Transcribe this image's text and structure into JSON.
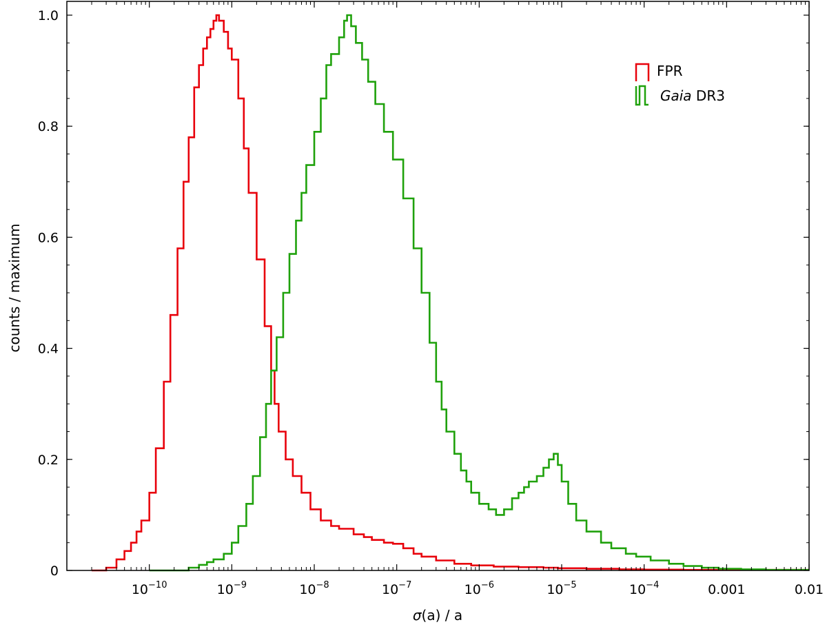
{
  "chart_data": {
    "type": "histogram",
    "xlabel_sigma": "σ",
    "xlabel_rest": "(a)  /  a",
    "ylabel": "counts  /  maximum",
    "x_scale": "log",
    "xlim": [
      1e-11,
      0.01
    ],
    "ylim": [
      0,
      1.0
    ],
    "grid": false,
    "legend": "top-right",
    "y_ticks": [
      {
        "value": 0,
        "label": "0"
      },
      {
        "value": 0.2,
        "label": "0.2"
      },
      {
        "value": 0.4,
        "label": "0.4"
      },
      {
        "value": 0.6,
        "label": "0.6"
      },
      {
        "value": 0.8,
        "label": "0.8"
      },
      {
        "value": 1.0,
        "label": "1.0"
      }
    ],
    "x_ticks": [
      {
        "value": 1e-10,
        "base": "10",
        "exp": "−10"
      },
      {
        "value": 1e-09,
        "base": "10",
        "exp": "−9"
      },
      {
        "value": 1e-08,
        "base": "10",
        "exp": "−8"
      },
      {
        "value": 1e-07,
        "base": "10",
        "exp": "−7"
      },
      {
        "value": 1e-06,
        "base": "10",
        "exp": "−6"
      },
      {
        "value": 1e-05,
        "base": "10",
        "exp": "−5"
      },
      {
        "value": 0.0001,
        "base": "10",
        "exp": "−4"
      },
      {
        "value": 0.001,
        "base": "0.001",
        "exp": ""
      },
      {
        "value": 0.01,
        "base": "0.01",
        "exp": ""
      }
    ],
    "series": [
      {
        "name": "FPR",
        "name_italic": "",
        "color": "#e8000b",
        "points": [
          [
            2e-11,
            0.0
          ],
          [
            3e-11,
            0.005
          ],
          [
            4e-11,
            0.02
          ],
          [
            5e-11,
            0.035
          ],
          [
            6e-11,
            0.05
          ],
          [
            7e-11,
            0.07
          ],
          [
            8e-11,
            0.09
          ],
          [
            1e-10,
            0.14
          ],
          [
            1.2e-10,
            0.22
          ],
          [
            1.5e-10,
            0.34
          ],
          [
            1.8e-10,
            0.46
          ],
          [
            2.2e-10,
            0.58
          ],
          [
            2.6e-10,
            0.7
          ],
          [
            3e-10,
            0.78
          ],
          [
            3.5e-10,
            0.87
          ],
          [
            4e-10,
            0.91
          ],
          [
            4.5e-10,
            0.94
          ],
          [
            5e-10,
            0.96
          ],
          [
            5.5e-10,
            0.975
          ],
          [
            6e-10,
            0.99
          ],
          [
            6.5e-10,
            1.0
          ],
          [
            7e-10,
            0.99
          ],
          [
            8e-10,
            0.97
          ],
          [
            9e-10,
            0.94
          ],
          [
            1e-09,
            0.92
          ],
          [
            1.2e-09,
            0.85
          ],
          [
            1.4e-09,
            0.76
          ],
          [
            1.6e-09,
            0.68
          ],
          [
            2e-09,
            0.56
          ],
          [
            2.5e-09,
            0.44
          ],
          [
            3e-09,
            0.36
          ],
          [
            3.3e-09,
            0.3
          ],
          [
            3.7e-09,
            0.25
          ],
          [
            4.5e-09,
            0.2
          ],
          [
            5.5e-09,
            0.17
          ],
          [
            7e-09,
            0.14
          ],
          [
            9e-09,
            0.11
          ],
          [
            1.2e-08,
            0.09
          ],
          [
            1.6e-08,
            0.08
          ],
          [
            2e-08,
            0.075
          ],
          [
            3e-08,
            0.065
          ],
          [
            4e-08,
            0.06
          ],
          [
            5e-08,
            0.055
          ],
          [
            7e-08,
            0.05
          ],
          [
            9e-08,
            0.048
          ],
          [
            1.2e-07,
            0.04
          ],
          [
            1.6e-07,
            0.03
          ],
          [
            2e-07,
            0.025
          ],
          [
            3e-07,
            0.018
          ],
          [
            5e-07,
            0.012
          ],
          [
            8e-07,
            0.009
          ],
          [
            1.5e-06,
            0.007
          ],
          [
            3e-06,
            0.006
          ],
          [
            6e-06,
            0.005
          ],
          [
            9e-06,
            0.004
          ],
          [
            2e-05,
            0.003
          ],
          [
            5e-05,
            0.002
          ],
          [
            0.0001,
            0.0015
          ],
          [
            0.0003,
            0.001
          ],
          [
            0.001,
            0.001
          ],
          [
            0.003,
            0.001
          ],
          [
            0.01,
            0.001
          ]
        ]
      },
      {
        "name": " DR3",
        "name_italic": "Gaia",
        "color": "#1fa10b",
        "points": [
          [
            1e-10,
            0.0
          ],
          [
            2e-10,
            0.0
          ],
          [
            3e-10,
            0.005
          ],
          [
            4e-10,
            0.01
          ],
          [
            5e-10,
            0.015
          ],
          [
            6e-10,
            0.02
          ],
          [
            8e-10,
            0.03
          ],
          [
            1e-09,
            0.05
          ],
          [
            1.2e-09,
            0.08
          ],
          [
            1.5e-09,
            0.12
          ],
          [
            1.8e-09,
            0.17
          ],
          [
            2.2e-09,
            0.24
          ],
          [
            2.6e-09,
            0.3
          ],
          [
            3e-09,
            0.36
          ],
          [
            3.5e-09,
            0.42
          ],
          [
            4.2e-09,
            0.5
          ],
          [
            5e-09,
            0.57
          ],
          [
            6e-09,
            0.63
          ],
          [
            7e-09,
            0.68
          ],
          [
            8e-09,
            0.73
          ],
          [
            1e-08,
            0.79
          ],
          [
            1.2e-08,
            0.85
          ],
          [
            1.4e-08,
            0.91
          ],
          [
            1.6e-08,
            0.93
          ],
          [
            1.8e-08,
            0.93
          ],
          [
            2e-08,
            0.96
          ],
          [
            2.3e-08,
            0.99
          ],
          [
            2.5e-08,
            1.0
          ],
          [
            2.8e-08,
            0.98
          ],
          [
            3.2e-08,
            0.95
          ],
          [
            3.8e-08,
            0.92
          ],
          [
            4.5e-08,
            0.88
          ],
          [
            5.5e-08,
            0.84
          ],
          [
            7e-08,
            0.79
          ],
          [
            9e-08,
            0.74
          ],
          [
            1.2e-07,
            0.67
          ],
          [
            1.6e-07,
            0.58
          ],
          [
            2e-07,
            0.5
          ],
          [
            2.5e-07,
            0.41
          ],
          [
            3e-07,
            0.34
          ],
          [
            3.5e-07,
            0.29
          ],
          [
            4e-07,
            0.25
          ],
          [
            5e-07,
            0.21
          ],
          [
            6e-07,
            0.18
          ],
          [
            7e-07,
            0.16
          ],
          [
            8e-07,
            0.14
          ],
          [
            1e-06,
            0.12
          ],
          [
            1.3e-06,
            0.11
          ],
          [
            1.6e-06,
            0.1
          ],
          [
            2e-06,
            0.11
          ],
          [
            2.5e-06,
            0.13
          ],
          [
            3e-06,
            0.14
          ],
          [
            3.5e-06,
            0.15
          ],
          [
            4e-06,
            0.16
          ],
          [
            5e-06,
            0.17
          ],
          [
            6e-06,
            0.185
          ],
          [
            7e-06,
            0.2
          ],
          [
            8e-06,
            0.21
          ],
          [
            9e-06,
            0.19
          ],
          [
            1e-05,
            0.16
          ],
          [
            1.2e-05,
            0.12
          ],
          [
            1.5e-05,
            0.09
          ],
          [
            2e-05,
            0.07
          ],
          [
            3e-05,
            0.05
          ],
          [
            4e-05,
            0.04
          ],
          [
            6e-05,
            0.03
          ],
          [
            8e-05,
            0.025
          ],
          [
            0.00012,
            0.018
          ],
          [
            0.0002,
            0.012
          ],
          [
            0.0003,
            0.008
          ],
          [
            0.0005,
            0.005
          ],
          [
            0.0008,
            0.003
          ],
          [
            0.0015,
            0.002
          ],
          [
            0.003,
            0.001
          ],
          [
            0.01,
            0.001
          ]
        ]
      }
    ]
  }
}
